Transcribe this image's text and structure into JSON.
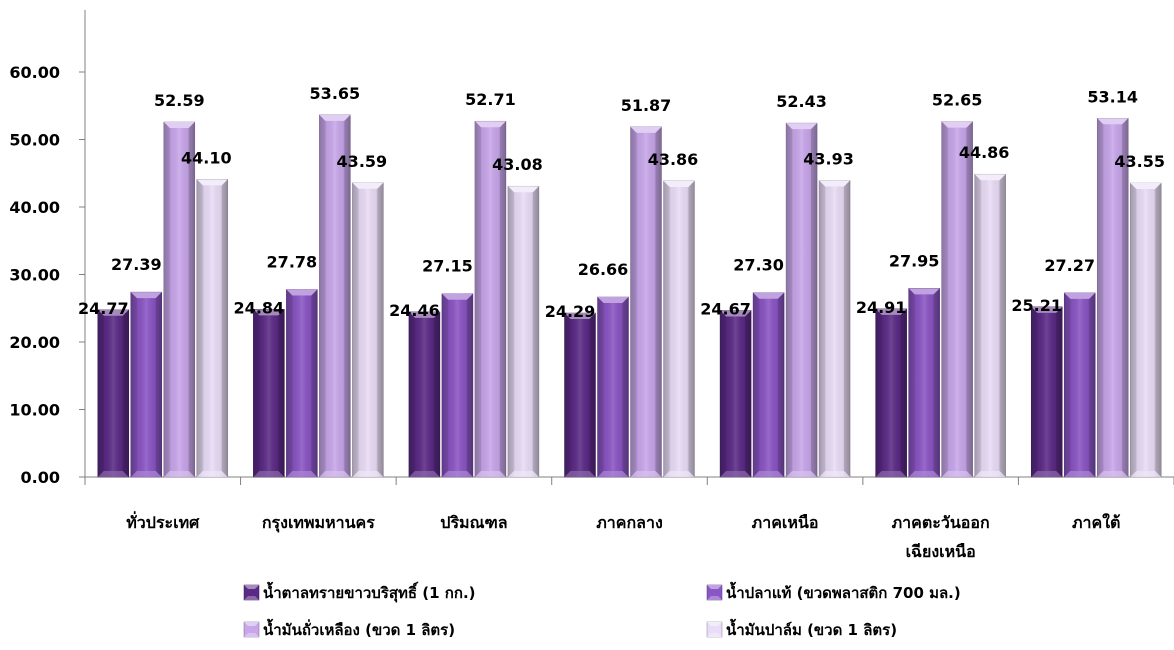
{
  "chart_data": {
    "type": "bar",
    "categories": [
      [
        "ทั่วประเทศ"
      ],
      [
        "กรุงเทพมหานคร"
      ],
      [
        "ปริมณฑล"
      ],
      [
        "ภาคกลาง"
      ],
      [
        "ภาคเหนือ"
      ],
      [
        "ภาคตะวันออก",
        "เฉียงเหนือ"
      ],
      [
        "ภาคใต้"
      ]
    ],
    "series": [
      {
        "name": "น้ำตาลทรายขาวบริสุทธิ์ (1 กก.)",
        "values": [
          24.77,
          24.84,
          24.46,
          24.29,
          24.67,
          24.91,
          25.21
        ],
        "color": "#5b2a86"
      },
      {
        "name": "น้ำปลาแท้ (ขวดพลาสติก 700 มล.)",
        "values": [
          27.39,
          27.78,
          27.15,
          26.66,
          27.3,
          27.95,
          27.27
        ],
        "color": "#8a55c4"
      },
      {
        "name": "น้ำมันถั่วเหลือง (ขวด 1 ลิตร)",
        "values": [
          52.59,
          53.65,
          52.71,
          51.87,
          52.43,
          52.65,
          53.14
        ],
        "color": "#c8a6ea"
      },
      {
        "name": "น้ำมันปาล์ม (ขวด 1 ลิตร)",
        "values": [
          44.1,
          43.59,
          43.08,
          43.86,
          43.93,
          44.86,
          43.55
        ],
        "color": "#e9dcf6"
      }
    ],
    "data_labels": [
      [
        "24.77",
        "24.84",
        "24.46",
        "24.29",
        "24.67",
        "24.91",
        "25.21"
      ],
      [
        "27.39",
        "27.78",
        "27.15",
        "26.66",
        "27.30",
        "27.95",
        "27.27"
      ],
      [
        "52.59",
        "53.65",
        "52.71",
        "51.87",
        "52.43",
        "52.65",
        "53.14"
      ],
      [
        "44.10",
        "43.59",
        "43.08",
        "43.86",
        "43.93",
        "44.86",
        "43.55"
      ]
    ],
    "y_ticks": [
      "0.00",
      "10.00",
      "20.00",
      "30.00",
      "40.00",
      "50.00",
      "60.00"
    ],
    "ylim": [
      0,
      60
    ],
    "grid": false,
    "legend_position": "bottom"
  }
}
